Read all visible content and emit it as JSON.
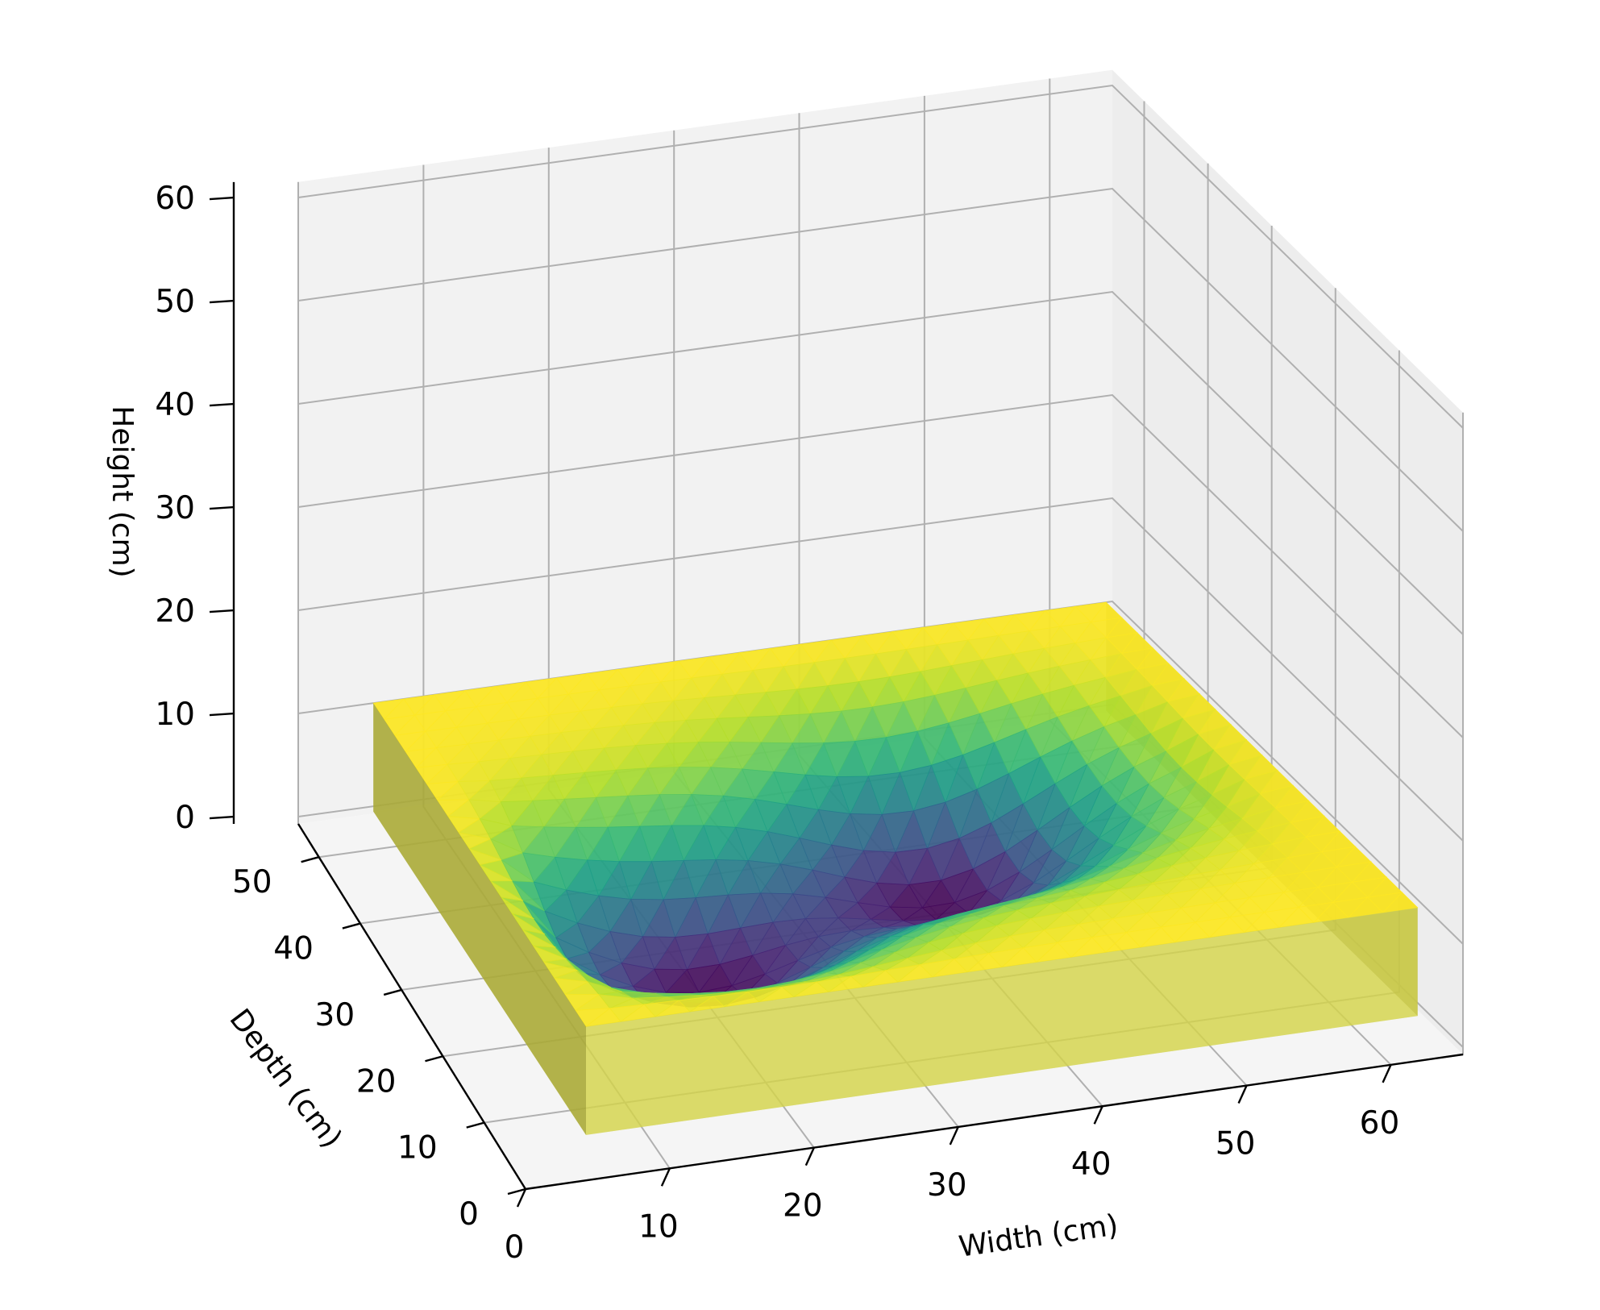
{
  "chart_data": {
    "type": "surface3d",
    "title": "",
    "xlabel": "Width (cm)",
    "ylabel": "Depth (cm)",
    "zlabel": "Height (cm)",
    "xlim": [
      0,
      65
    ],
    "ylim": [
      0,
      55
    ],
    "zlim": [
      0,
      60
    ],
    "x_ticks": [
      "0",
      "10",
      "20",
      "30",
      "40",
      "50",
      "60"
    ],
    "y_ticks": [
      "0",
      "10",
      "20",
      "30",
      "40",
      "50"
    ],
    "z_ticks": [
      "0",
      "10",
      "20",
      "30",
      "40",
      "50",
      "60"
    ],
    "grid": true,
    "colormap": "viridis",
    "box": {
      "x_range": [
        0,
        65
      ],
      "y_range": [
        0,
        55
      ],
      "z_range": [
        0,
        10
      ],
      "color": "#d4d44a",
      "description": "translucent yellow block containing the surface"
    },
    "surface": {
      "rim_height": 10,
      "z_range": [
        -2,
        10
      ],
      "depressions": [
        {
          "center_x": 20,
          "center_y": 25,
          "depth_z": -1.5
        },
        {
          "center_x": 42,
          "center_y": 33,
          "depth_z": -1.5
        }
      ]
    }
  }
}
